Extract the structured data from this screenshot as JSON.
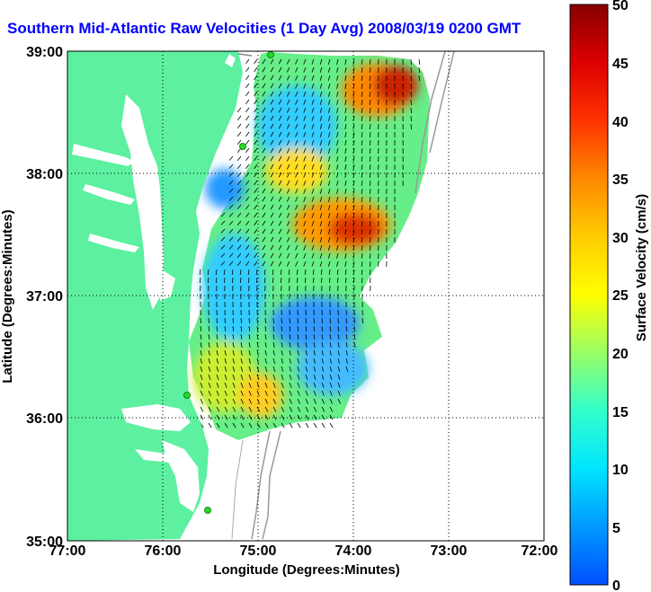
{
  "title": "Southern Mid-Atlantic Raw Velocities (1 Day Avg) 2008/03/19 0200 GMT",
  "x_axis": {
    "label": "Longitude (Degrees:Minutes)",
    "ticks": [
      "77:00",
      "76:00",
      "75:00",
      "74:00",
      "73:00",
      "72:00"
    ]
  },
  "y_axis": {
    "label": "Latitude (Degrees:Minutes)",
    "ticks": [
      "39:00",
      "38:00",
      "37:00",
      "36:00",
      "35:00"
    ]
  },
  "colorbar": {
    "label": "Surface Velocity (cm/s)",
    "ticks": [
      "50",
      "45",
      "40",
      "35",
      "30",
      "25",
      "20",
      "15",
      "10",
      "5",
      "0"
    ],
    "min": 0,
    "max": 50
  },
  "colors": {
    "land": "#5cf0a0",
    "ocean": "#ffffff",
    "title": "#0000ff",
    "station": "#22dd22"
  },
  "chart_data": {
    "type": "heatmap",
    "lon_range": [
      -77,
      -72
    ],
    "lat_range": [
      35,
      39
    ],
    "value_range": [
      0,
      50
    ],
    "grid": true
  }
}
